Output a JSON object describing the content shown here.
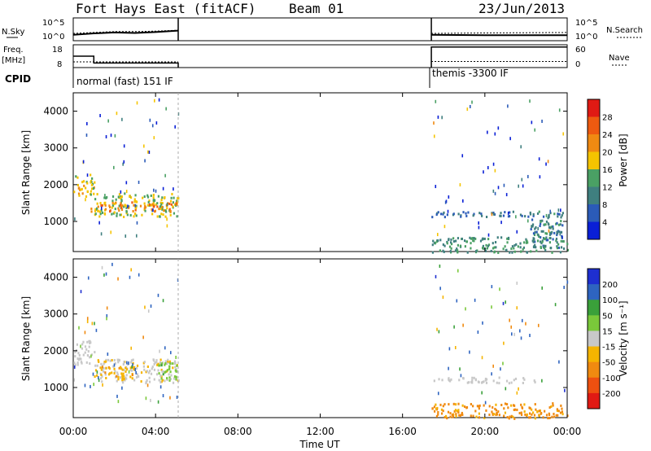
{
  "header": {
    "station": "Fort Hays East (fitACF)",
    "beam": "Beam 01",
    "date": "23/Jun/2013"
  },
  "side_labels": {
    "nsky": "N.Sky",
    "nsearch": "N.Search",
    "freq": "Freq.",
    "mhz": "[MHz]",
    "nave": "Nave",
    "cpid": "CPID"
  },
  "noise_axis": {
    "left_ticks": [
      "10^5",
      "10^0"
    ],
    "right_ticks": [
      "10^5",
      "10^0"
    ]
  },
  "freq_axis": {
    "left_ticks": [
      "18",
      "8"
    ],
    "right_ticks": [
      "60",
      "0"
    ]
  },
  "cpid_labels": [
    "normal (fast) 151 IF",
    "themis -3300 IF"
  ],
  "time_axis": {
    "label": "Time UT",
    "ticks": [
      "00:00",
      "04:00",
      "08:00",
      "12:00",
      "16:00",
      "20:00",
      "00:00"
    ]
  },
  "range_axis": {
    "label": "Slant Range [km]",
    "ticks": [
      "1000",
      "2000",
      "3000",
      "4000"
    ]
  },
  "power_colorbar": {
    "label": "Power [dB]",
    "ticks": [
      "4",
      "8",
      "12",
      "16",
      "20",
      "24",
      "28"
    ],
    "colors": [
      "#0a1fd6",
      "#2b5bb8",
      "#3f7f7f",
      "#4aa064",
      "#f5c400",
      "#f08a12",
      "#ee5a10",
      "#e01a14"
    ]
  },
  "velocity_colorbar": {
    "label": "Velocity [m s⁻¹]",
    "ticks": [
      "200",
      "100",
      "50",
      "15",
      "-15",
      "-50",
      "-100",
      "-200"
    ],
    "colors": [
      "#1e2fd0",
      "#2e64c0",
      "#3aa03a",
      "#7ac83a",
      "#c8c8c8",
      "#f5b400",
      "#f08a10",
      "#ee5010",
      "#e01a14"
    ]
  },
  "chart_data": [
    {
      "type": "line",
      "title": "N.Sky / N.Search",
      "x_range_hours": [
        0,
        24
      ],
      "data_gap_hours": [
        5.1,
        17.4
      ],
      "series": [
        {
          "name": "N.Sky",
          "x": [
            0,
            1,
            2,
            3,
            4,
            5.1,
            17.4,
            20,
            24
          ],
          "values": [
            1.3,
            1.6,
            1.8,
            1.7,
            1.9,
            2.2,
            1.3,
            1.2,
            1.2
          ]
        },
        {
          "name": "N.Search",
          "x": [
            0,
            1,
            2,
            3,
            4,
            5.1,
            17.4,
            20,
            24
          ],
          "values": [
            1.6,
            1.8,
            2.0,
            2.0,
            2.1,
            2.3,
            1.6,
            1.7,
            1.8
          ]
        }
      ],
      "ylim": [
        0,
        5
      ]
    },
    {
      "type": "line",
      "title": "Freq. / Nave",
      "series": [
        {
          "name": "Freq. [MHz]",
          "x": [
            0,
            1.0,
            1.0,
            5.1,
            17.4,
            24
          ],
          "values": [
            13,
            13,
            10,
            10,
            17,
            17
          ]
        },
        {
          "name": "Nave",
          "x": [
            0,
            5.1,
            17.4,
            24
          ],
          "values": [
            15,
            15,
            16,
            16
          ]
        }
      ],
      "ylim_freq": [
        8,
        18
      ],
      "ylim_nave": [
        0,
        60
      ]
    },
    {
      "type": "heatmap",
      "title": "Power [dB]",
      "xlabel": "Time UT",
      "ylabel": "Slant Range [km]",
      "xlim_hours": [
        0,
        24
      ],
      "ylim_km": [
        180,
        4500
      ],
      "colorbar_ticks": [
        4,
        8,
        12,
        16,
        20,
        24,
        28
      ],
      "bands": [
        {
          "t0": 0.0,
          "t1": 1.0,
          "r0": 1650,
          "r1": 2300,
          "value": 18
        },
        {
          "t0": 1.0,
          "t1": 5.1,
          "r0": 1150,
          "r1": 1800,
          "value": 16
        },
        {
          "t0": 0.8,
          "t1": 5.0,
          "r0": 1300,
          "r1": 1550,
          "value": 22
        },
        {
          "t0": 17.4,
          "t1": 22.5,
          "r0": 1150,
          "r1": 1300,
          "value": 8
        },
        {
          "t0": 22.2,
          "t1": 23.8,
          "r0": 300,
          "r1": 1300,
          "value": 10
        },
        {
          "t0": 17.4,
          "t1": 24.0,
          "r0": 180,
          "r1": 600,
          "value": 12
        }
      ]
    },
    {
      "type": "heatmap",
      "title": "Velocity [m s-1]",
      "xlabel": "Time UT",
      "ylabel": "Slant Range [km]",
      "xlim_hours": [
        0,
        24
      ],
      "ylim_km": [
        180,
        4500
      ],
      "colorbar_ticks": [
        200,
        100,
        50,
        15,
        -15,
        -50,
        -100,
        -200
      ],
      "bands": [
        {
          "t0": 0.0,
          "t1": 1.0,
          "r0": 1650,
          "r1": 2300,
          "value": 0
        },
        {
          "t0": 1.0,
          "t1": 5.1,
          "r0": 1150,
          "r1": 1800,
          "value": -5
        },
        {
          "t0": 1.0,
          "t1": 3.0,
          "r0": 1250,
          "r1": 1600,
          "value": -40
        },
        {
          "t0": 4.0,
          "t1": 5.0,
          "r0": 1200,
          "r1": 1700,
          "value": 40
        },
        {
          "t0": 17.4,
          "t1": 22.5,
          "r0": 1150,
          "r1": 1300,
          "value": 0
        },
        {
          "t0": 17.4,
          "t1": 24.0,
          "r0": 180,
          "r1": 600,
          "value": -60
        }
      ]
    }
  ]
}
